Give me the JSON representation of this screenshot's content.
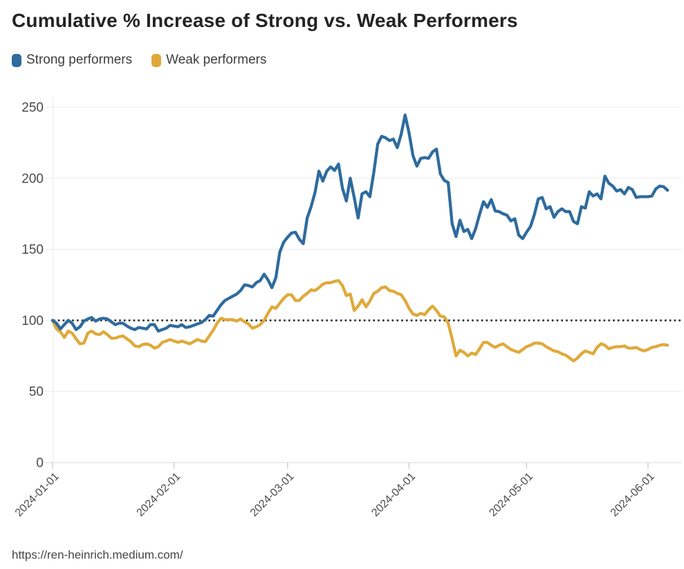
{
  "page": {
    "footer": "https://ren-heinrich.medium.com/"
  },
  "legend": [
    {
      "label": "Strong performers",
      "color": "#2e6b9e"
    },
    {
      "label": "Weak performers",
      "color": "#dfa93a"
    }
  ],
  "chart_data": {
    "type": "line",
    "title": "Cumulative % Increase of Strong vs. Weak Performers",
    "xlabel": "",
    "ylabel": "",
    "x_unit": "days since 2024-01-01 (daily values)",
    "x_tick_labels": [
      "2024-01-01",
      "2024-02-01",
      "2024-03-01",
      "2024-04-01",
      "2024-05-01",
      "2024-06-01"
    ],
    "x_tick_days": [
      0,
      31,
      60,
      91,
      121,
      152
    ],
    "ylim": [
      0,
      250
    ],
    "y_ticks": [
      0,
      50,
      100,
      150,
      200,
      250
    ],
    "baseline_value": 100,
    "grid": "horizontal",
    "legend_position": "top-left",
    "colors": {
      "grid": "#e9e9e9",
      "axis": "#d9d9d9",
      "tick": "#cfcfcf",
      "baseline": "#2b2b2b",
      "tick_text": "#4a4a4a"
    },
    "series": [
      {
        "name": "Strong performers",
        "color": "#2e6b9e",
        "values": [
          100,
          98,
          94,
          97,
          100,
          98,
          93.5,
          95.5,
          99.5,
          101,
          102,
          99.5,
          101,
          101.5,
          101,
          99,
          97,
          98,
          98,
          96,
          94.5,
          93.5,
          95,
          94.5,
          94,
          97,
          97,
          92.5,
          93.5,
          94.5,
          96.5,
          96,
          95.5,
          97,
          95,
          95.5,
          96.5,
          97.5,
          98.5,
          100.5,
          103.5,
          103,
          107,
          111,
          114,
          115.5,
          117,
          118.5,
          121,
          125,
          124.5,
          123.5,
          126.5,
          128,
          132.5,
          128.5,
          123,
          130,
          148,
          155,
          158.5,
          161.5,
          162,
          157,
          154,
          172,
          180,
          190,
          205,
          198,
          205,
          208,
          205.5,
          210,
          193,
          184,
          200,
          186.5,
          172,
          189,
          190.5,
          187,
          204,
          224,
          229.5,
          228.5,
          226.5,
          227.5,
          221.5,
          231,
          244.5,
          232,
          216,
          208.5,
          214,
          214.5,
          214,
          218.5,
          220.5,
          203,
          198.5,
          197,
          168,
          159,
          170.5,
          162.5,
          164,
          157.5,
          164.5,
          174.5,
          183.5,
          179.5,
          185,
          177,
          176.5,
          175,
          174,
          170,
          171.5,
          160,
          157.5,
          162,
          166,
          174.5,
          185.5,
          186.5,
          178.5,
          180,
          172.5,
          176.5,
          178.5,
          176.5,
          176.5,
          169.5,
          168,
          180,
          179,
          190.5,
          187.5,
          189,
          185.5,
          201.5,
          196.5,
          194.5,
          191,
          192,
          189,
          193.5,
          192,
          186.5,
          187,
          187,
          187,
          187.5,
          192.5,
          194.5,
          194,
          191.5
        ]
      },
      {
        "name": "Weak performers",
        "color": "#dfa93a",
        "values": [
          100,
          94,
          92,
          88,
          92.5,
          91,
          87,
          83.5,
          84,
          91,
          92.5,
          90.5,
          90,
          92,
          90,
          87.5,
          87.5,
          88.5,
          89,
          87,
          85,
          82,
          81.5,
          83,
          83.5,
          82.5,
          80.5,
          81.5,
          84.5,
          85.5,
          86.5,
          85.5,
          84.5,
          85.5,
          84.5,
          83.5,
          85,
          86.5,
          85.5,
          85,
          89,
          93,
          98,
          101.5,
          100.5,
          100.5,
          100.5,
          99.5,
          101,
          99,
          97.5,
          94.5,
          95.5,
          97,
          100,
          105,
          109.5,
          108.5,
          112,
          115.5,
          118,
          118,
          114,
          114,
          117,
          119,
          121.5,
          121,
          123,
          125.5,
          126.5,
          126.5,
          127.5,
          128,
          124.5,
          117.5,
          118.5,
          107,
          110,
          114.5,
          109.5,
          113.5,
          119,
          120.5,
          123,
          123.5,
          121,
          120.5,
          119,
          118,
          114,
          108.5,
          104.5,
          103.5,
          105,
          104,
          107.5,
          110,
          107,
          103,
          102.5,
          98,
          87,
          75,
          79,
          77.5,
          75,
          77,
          76,
          80,
          84.5,
          84.5,
          82.5,
          81,
          82.5,
          83.5,
          81.5,
          79.5,
          78.5,
          77.5,
          79.5,
          81.5,
          82.5,
          84,
          84,
          83.5,
          81.5,
          80,
          78.5,
          78,
          76.5,
          75.5,
          73.5,
          71.5,
          73.5,
          76.5,
          78.5,
          77.5,
          76.5,
          81,
          83.5,
          82.5,
          80,
          81,
          81.5,
          81.5,
          82,
          80.5,
          80.5,
          81,
          79.5,
          78.5,
          79.5,
          81,
          81.5,
          82.5,
          83,
          82.5
        ]
      }
    ]
  }
}
